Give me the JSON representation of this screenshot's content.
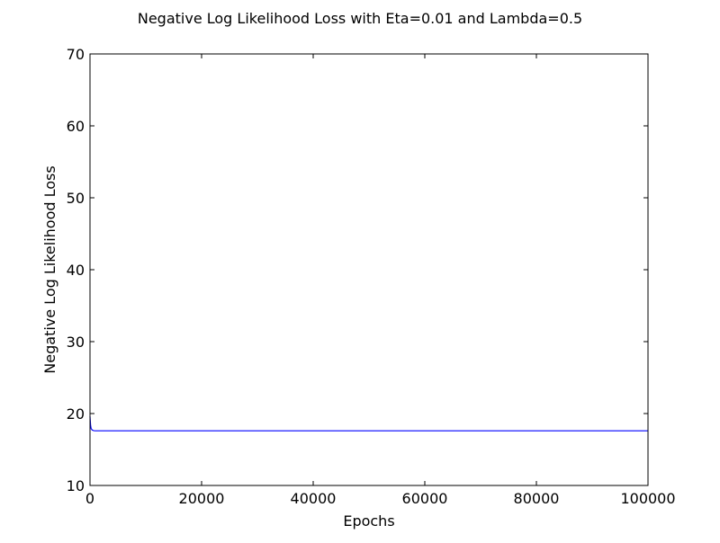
{
  "chart_data": {
    "type": "line",
    "title": "Negative Log Likelihood Loss with Eta=0.01 and Lambda=0.5",
    "xlabel": "Epochs",
    "ylabel": "Negative Log Likelihood Loss",
    "xlim": [
      0,
      100000
    ],
    "ylim": [
      10,
      70
    ],
    "xticks": [
      0,
      20000,
      40000,
      60000,
      80000,
      100000
    ],
    "yticks": [
      10,
      20,
      30,
      40,
      50,
      60,
      70
    ],
    "grid": false,
    "series": [
      {
        "color": "#0000ff",
        "x": [
          0,
          100,
          200,
          400,
          700,
          1000,
          2000,
          5000,
          10000,
          20000,
          40000,
          60000,
          80000,
          100000
        ],
        "y": [
          19.6,
          18.4,
          17.9,
          17.7,
          17.62,
          17.6,
          17.6,
          17.6,
          17.6,
          17.6,
          17.6,
          17.6,
          17.6,
          17.6
        ]
      }
    ]
  }
}
